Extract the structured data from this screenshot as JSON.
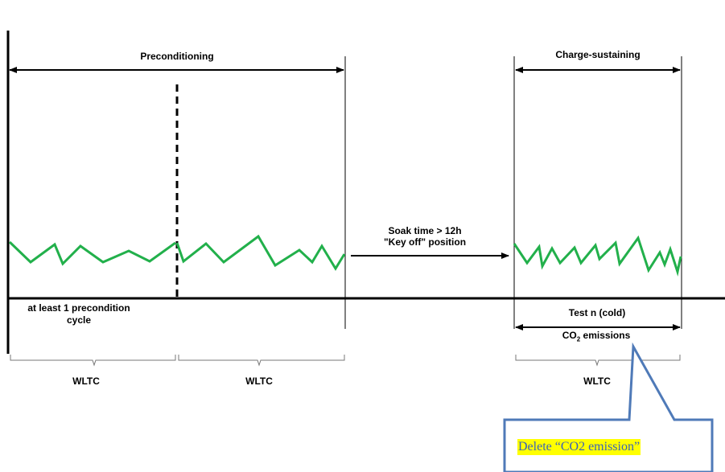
{
  "diagram": {
    "labels": {
      "preconditioning": "Preconditioning",
      "charge_sustaining": "Charge-sustaining",
      "soak_line1": "Soak time > 12h",
      "soak_line2": "\"Key off\" position",
      "precondition_note_line1": "at least 1 precondition",
      "precondition_note_line2": "cycle",
      "test_cold": "Test n (cold)",
      "co2_main": "CO",
      "co2_sub": "2",
      "co2_rest": " emissions",
      "wltc_1": "WLTC",
      "wltc_2": "WLTC",
      "wltc_3": "WLTC"
    },
    "colors": {
      "line": "#000000",
      "trace": "#22b04b",
      "callout_border": "#4f7ab8",
      "callout_text": "#3b63b8",
      "highlight": "#ffff00"
    }
  },
  "callout": {
    "text": "Delete “CO2 emission”"
  }
}
